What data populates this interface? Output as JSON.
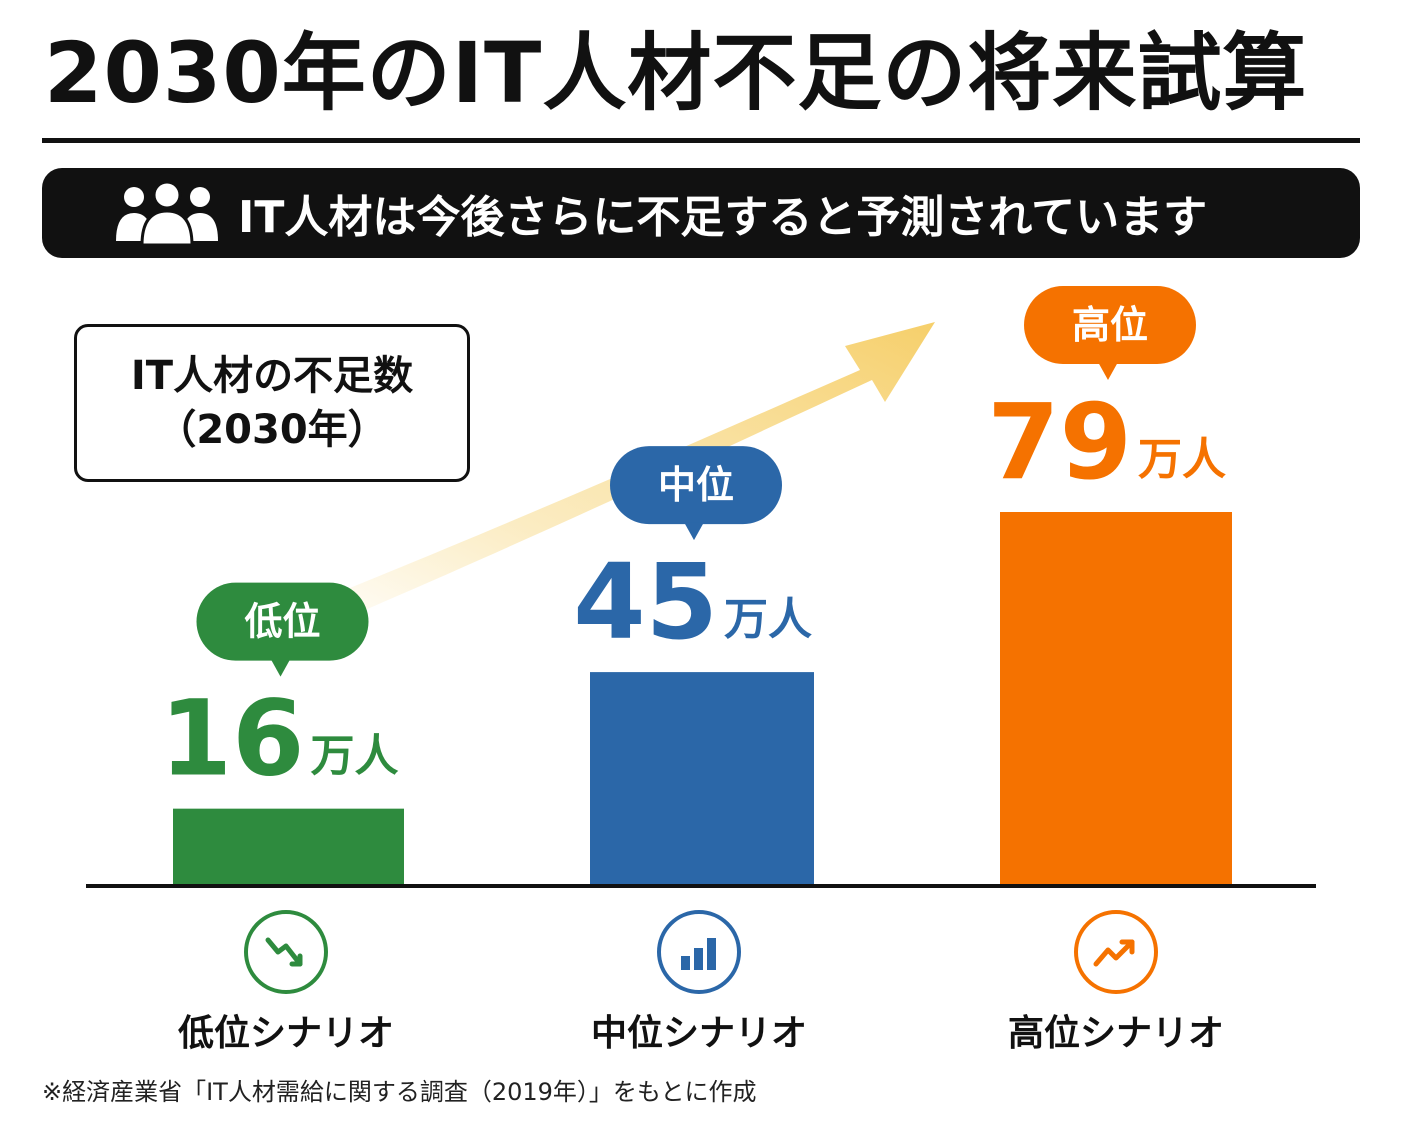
{
  "title": "2030年のIT人材不足の将来試算",
  "banner": {
    "icon": "people-group-icon",
    "text": "IT人材は今後さらに不足すると予測されています"
  },
  "label_box": {
    "line1": "IT人材の不足数",
    "line2": "（2030年）"
  },
  "chart_data": {
    "type": "bar",
    "title": "2030年のIT人材不足の将来試算",
    "categories": [
      "低位シナリオ",
      "中位シナリオ",
      "高位シナリオ"
    ],
    "values": [
      16,
      45,
      79
    ],
    "unit": "万人",
    "badges": [
      "低位",
      "中位",
      "高位"
    ],
    "colors": [
      "#2e8b3e",
      "#2b67a8",
      "#f57200"
    ],
    "icons": [
      "trend-down-icon",
      "bar-chart-icon",
      "trend-up-icon"
    ],
    "ylim": [
      0,
      79
    ],
    "grid": false,
    "legend": "none"
  },
  "source": "※経済産業省「IT人材需給に関する調査（2019年）」をもとに作成"
}
